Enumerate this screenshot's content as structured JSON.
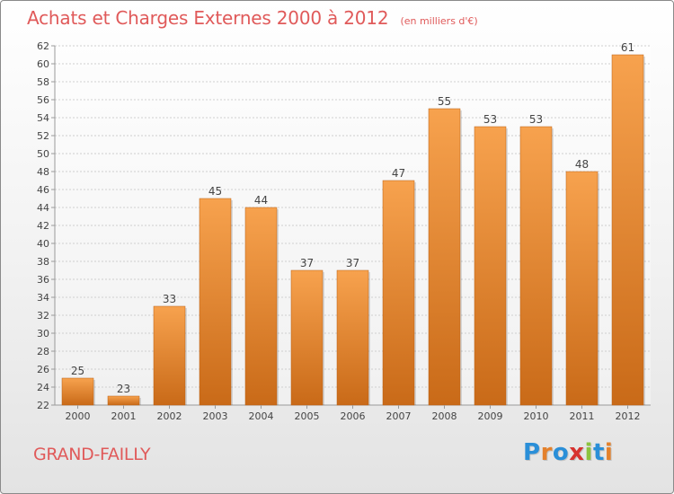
{
  "header": {
    "title": "Achats et Charges Externes 2000 à 2012",
    "subtitle": "(en milliers d'€)"
  },
  "footer": {
    "commune": "GRAND-FAILLY",
    "logo_text": "Proxiti"
  },
  "colors": {
    "title": "#e05a5a",
    "bar_top": "#f7a24e",
    "bar_bottom": "#c96a18",
    "logo": [
      "#2a8fd8",
      "#e4812c",
      "#2a8fd8",
      "#d7322f",
      "#8cc33f",
      "#2a8fd8",
      "#e4812c"
    ]
  },
  "chart_data": {
    "type": "bar",
    "categories": [
      "2000",
      "2001",
      "2002",
      "2003",
      "2004",
      "2005",
      "2006",
      "2007",
      "2008",
      "2009",
      "2010",
      "2011",
      "2012"
    ],
    "values": [
      25,
      23,
      33,
      45,
      44,
      37,
      37,
      47,
      55,
      53,
      53,
      48,
      61
    ],
    "title": "Achats et Charges Externes 2000 à 2012",
    "subtitle": "(en milliers d'€)",
    "xlabel": "",
    "ylabel": "",
    "ylim": [
      22,
      62
    ],
    "yticks": [
      22,
      24,
      26,
      28,
      30,
      32,
      34,
      36,
      38,
      40,
      42,
      44,
      46,
      48,
      50,
      52,
      54,
      56,
      58,
      60,
      62
    ],
    "grid": true,
    "legend": "none"
  }
}
